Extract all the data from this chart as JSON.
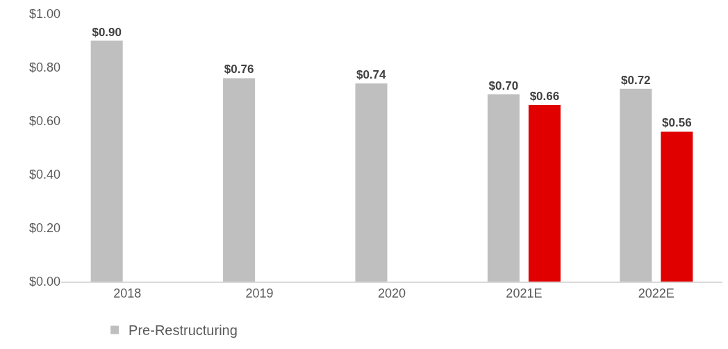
{
  "chart_data": {
    "type": "bar",
    "categories": [
      "2018",
      "2019",
      "2020",
      "2021E",
      "2022E"
    ],
    "series": [
      {
        "name": "Pre-Restructuring",
        "color": "#bfbfbf",
        "values": [
          0.9,
          0.76,
          0.74,
          0.7,
          0.72
        ],
        "value_labels": [
          "$0.90",
          "$0.76",
          "$0.74",
          "$0.70",
          "$0.72"
        ]
      },
      {
        "color": "#e00000",
        "values": [
          null,
          null,
          null,
          0.66,
          0.56
        ],
        "value_labels": [
          null,
          null,
          null,
          "$0.66",
          "$0.56"
        ]
      }
    ],
    "ylim": [
      0,
      1
    ],
    "yticks": [
      {
        "value": 0,
        "label": "$0.00"
      },
      {
        "value": 0.2,
        "label": "$0.20"
      },
      {
        "value": 0.4,
        "label": "$0.40"
      },
      {
        "value": 0.6,
        "label": "$0.60"
      },
      {
        "value": 0.8,
        "label": "$0.80"
      },
      {
        "value": 1,
        "label": "$1.00"
      }
    ],
    "grid": false,
    "legend": "bottom left"
  }
}
